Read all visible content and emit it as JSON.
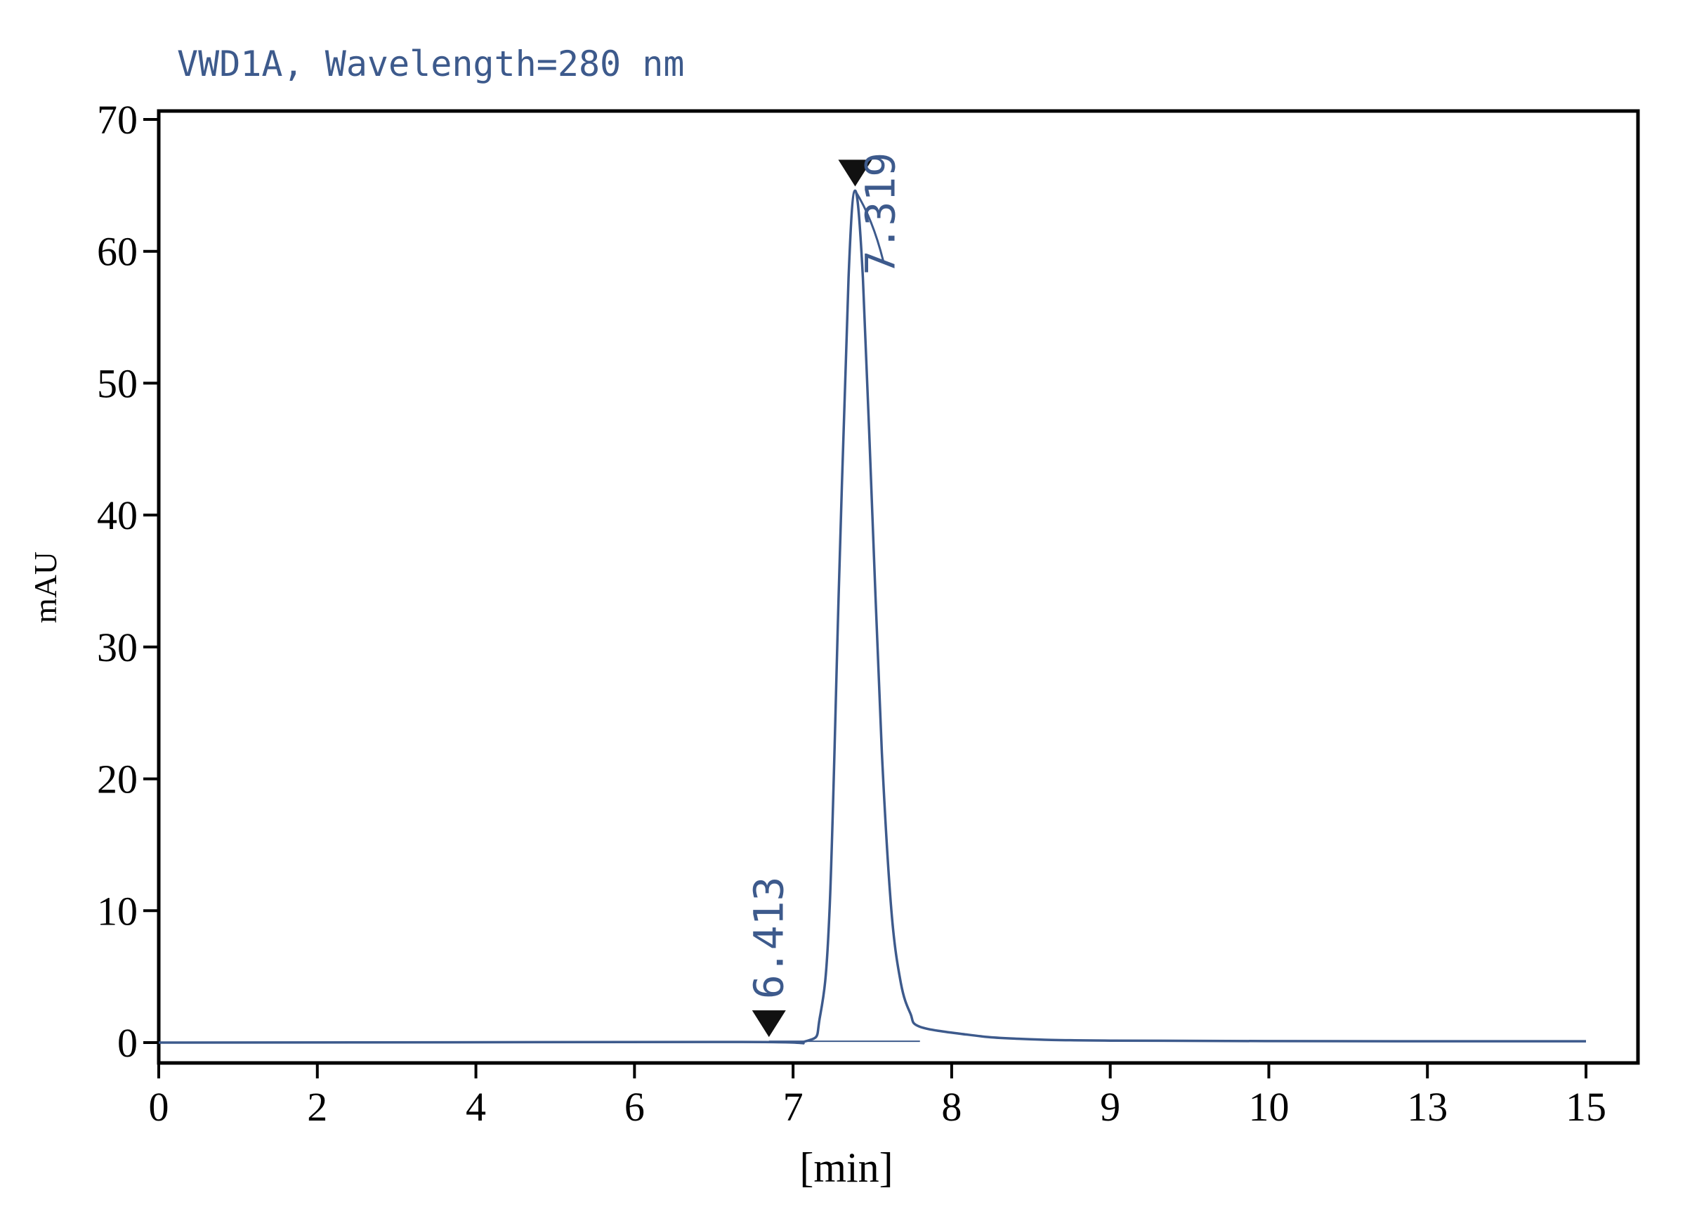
{
  "chart_data": {
    "type": "line",
    "title": "VWD1A, Wavelength=280 nm",
    "xlabel": "[min]",
    "ylabel": "mAU",
    "xlim": [
      0,
      15
    ],
    "ylim": [
      0,
      70
    ],
    "grid": false,
    "x_ticks": [
      "0",
      "2",
      "4",
      "6",
      "7",
      "8",
      "9",
      "10",
      "13",
      "15"
    ],
    "y_ticks": [
      "0",
      "10",
      "20",
      "30",
      "40",
      "50",
      "60",
      "70"
    ],
    "peaks": [
      {
        "label": "6.413",
        "x": 6.413,
        "y": 0.1
      },
      {
        "label": "7.319",
        "x": 7.319,
        "y": 64.6
      }
    ],
    "series": [
      {
        "points": [
          [
            0,
            0
          ],
          [
            6,
            0.05
          ],
          [
            6.8,
            0.1
          ],
          [
            6.95,
            2
          ],
          [
            7.05,
            10
          ],
          [
            7.15,
            35
          ],
          [
            7.25,
            58
          ],
          [
            7.319,
            64.6
          ],
          [
            7.4,
            58
          ],
          [
            7.5,
            40
          ],
          [
            7.6,
            22
          ],
          [
            7.7,
            10
          ],
          [
            7.8,
            4.5
          ],
          [
            7.9,
            2.2
          ],
          [
            8.0,
            1.2
          ],
          [
            8.5,
            0.6
          ],
          [
            9,
            0.3
          ],
          [
            10,
            0.15
          ],
          [
            13,
            0.1
          ],
          [
            15,
            0.1
          ]
        ]
      }
    ],
    "colors": {
      "trace": "#3d5a8c",
      "axis": "#000000",
      "annotation": "#3d5a8c"
    }
  }
}
